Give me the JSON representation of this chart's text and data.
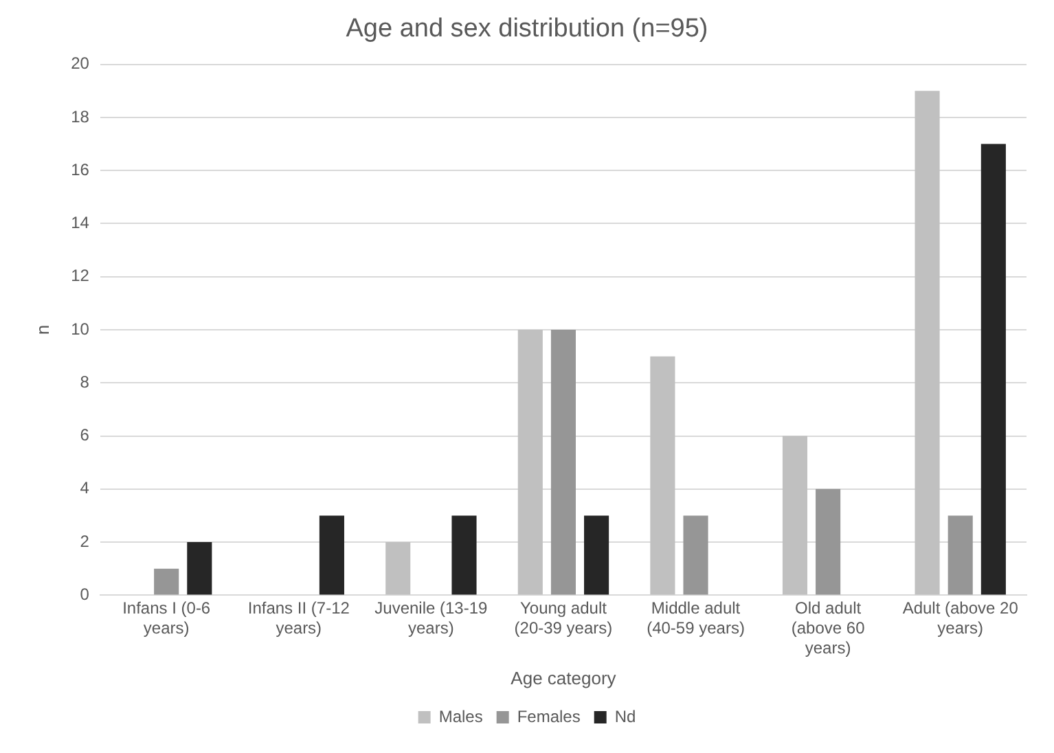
{
  "chart_data": {
    "type": "bar",
    "title": "Age and sex distribution (n=95)",
    "xlabel": "Age category",
    "ylabel": "n",
    "categories": [
      "Infans I (0-6 years)",
      "Infans II (7-12 years)",
      "Juvenile (13-19 years)",
      "Young adult (20-39 years)",
      "Middle adult (40-59 years)",
      "Old adult (above 60 years)",
      "Adult (above 20 years)"
    ],
    "series": [
      {
        "name": "Males",
        "color": "#c0c0c0",
        "values": [
          0,
          0,
          2,
          10,
          9,
          6,
          19
        ]
      },
      {
        "name": "Females",
        "color": "#969696",
        "values": [
          1,
          0,
          0,
          10,
          3,
          4,
          3
        ]
      },
      {
        "name": "Nd",
        "color": "#262626",
        "values": [
          2,
          3,
          3,
          3,
          0,
          0,
          17
        ]
      }
    ],
    "ylim": [
      0,
      20
    ],
    "yticks": [
      0,
      2,
      4,
      6,
      8,
      10,
      12,
      14,
      16,
      18,
      20
    ],
    "grid": "y",
    "legend": "bottom"
  }
}
